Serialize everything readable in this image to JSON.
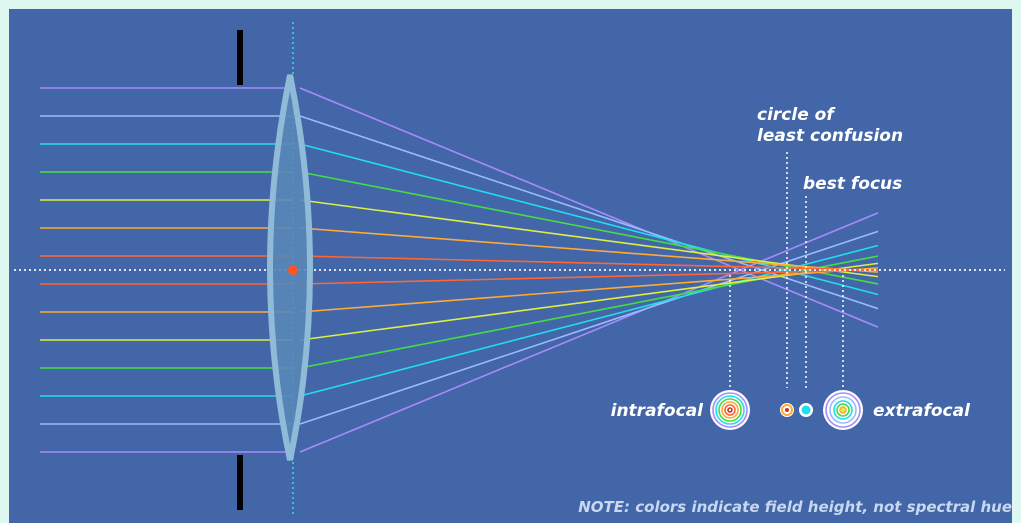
{
  "labels": {
    "circle_of_least_confusion": [
      "circle of",
      "least confusion"
    ],
    "best_focus": "best focus",
    "intrafocal": "intrafocal",
    "extrafocal": "extrafocal",
    "note": "NOTE: colors indicate field height, not spectral hue"
  }
}
